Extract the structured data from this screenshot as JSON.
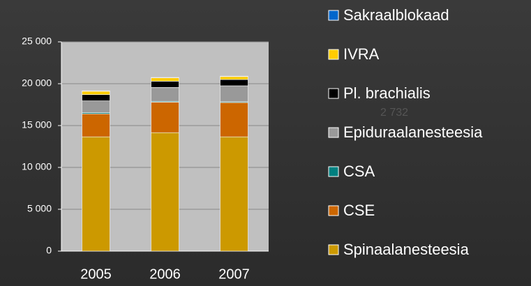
{
  "chart_data": {
    "type": "stacked_bar",
    "categories": [
      "2005",
      "2006",
      "2007"
    ],
    "series": [
      {
        "name": "Spinaalanesteesia",
        "color": "#cc9900",
        "values": [
          13650,
          14150,
          13650
        ]
      },
      {
        "name": "CSE",
        "color": "#cc6600",
        "values": [
          2750,
          3650,
          4100
        ]
      },
      {
        "name": "CSA",
        "color": "#008080",
        "values": [
          150,
          100,
          100
        ]
      },
      {
        "name": "Epiduraalanesteesia",
        "color": "#999999",
        "values": [
          1400,
          1650,
          1900
        ]
      },
      {
        "name": "Pl. brachialis",
        "color": "#000000",
        "values": [
          750,
          750,
          750
        ]
      },
      {
        "name": "IVRA",
        "color": "#ffcc00",
        "values": [
          400,
          400,
          350
        ]
      },
      {
        "name": "Sakraalblokaad",
        "color": "#0066cc",
        "values": [
          50,
          50,
          50
        ]
      }
    ],
    "annotations": [
      "2 732"
    ],
    "ylim": [
      0,
      25000
    ],
    "yticks": [
      0,
      {
        "value": 5000,
        "label": "5 000"
      },
      {
        "value": 10000,
        "label": "10 000"
      },
      {
        "value": 15000,
        "label": "15 000"
      },
      {
        "value": 20000,
        "label": "20 000"
      },
      {
        "value": 25000,
        "label": "25 000"
      }
    ],
    "grid": true,
    "legend": "right"
  }
}
